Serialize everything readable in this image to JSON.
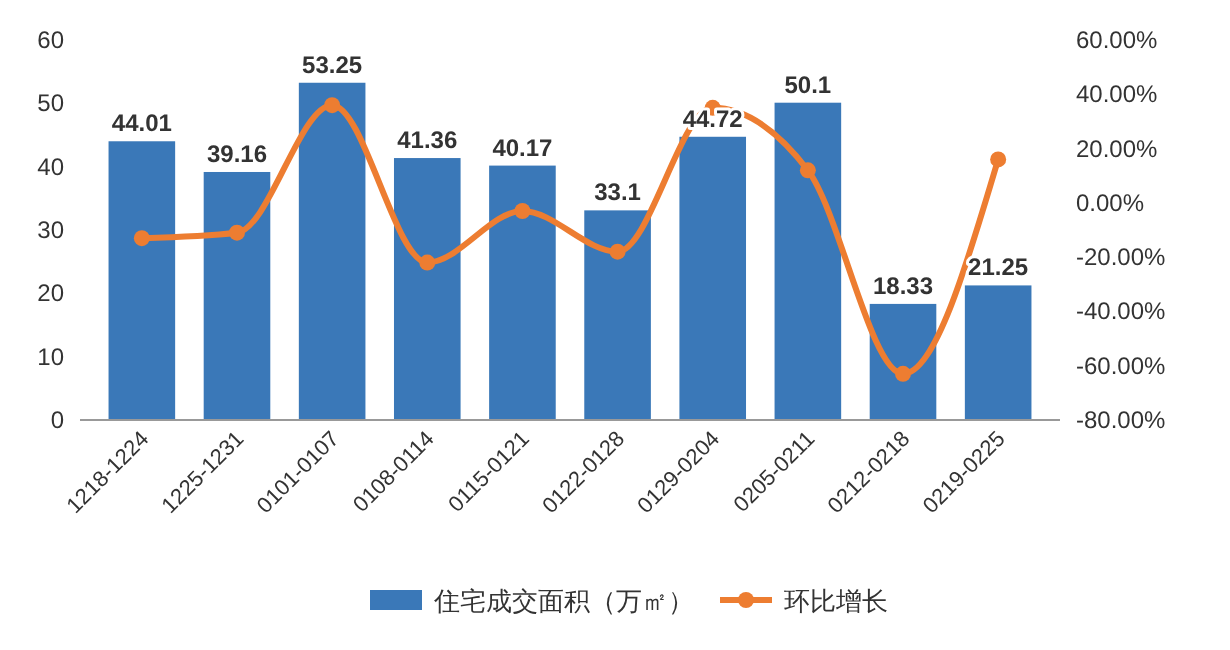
{
  "chart_data": {
    "type": "bar",
    "categories": [
      "1218-1224",
      "1225-1231",
      "0101-0107",
      "0108-0114",
      "0115-0121",
      "0122-0128",
      "0129-0204",
      "0205-0211",
      "0212-0218",
      "0219-0225"
    ],
    "series": [
      {
        "name": "住宅成交面积（万㎡）",
        "color": "#3a78b8",
        "values": [
          44.01,
          39.16,
          53.25,
          41.36,
          40.17,
          33.1,
          44.72,
          50.1,
          18.33,
          21.25
        ],
        "value_labels": [
          "44.01",
          "39.16",
          "53.25",
          "41.36",
          "40.17",
          "33.1",
          "44.72",
          "50.1",
          "18.33",
          "21.25"
        ]
      },
      {
        "name": "环比增长",
        "type": "line",
        "axis": "y2",
        "color": "#ed7d31",
        "values": [
          -13,
          -11,
          36,
          -22,
          -3,
          -18,
          35,
          12,
          -63,
          16
        ]
      }
    ],
    "ylim": [
      0,
      60
    ],
    "yticks": [
      0,
      10,
      20,
      30,
      40,
      50,
      60
    ],
    "y2lim": [
      -80,
      60
    ],
    "y2ticks": [
      {
        "value": -80,
        "label": "-80.00%"
      },
      {
        "value": -60,
        "label": "-60.00%"
      },
      {
        "value": -40,
        "label": "-40.00%"
      },
      {
        "value": -20,
        "label": "-20.00%"
      },
      {
        "value": 0,
        "label": "0.00%"
      },
      {
        "value": 20,
        "label": "20.00%"
      },
      {
        "value": 40,
        "label": "40.00%"
      },
      {
        "value": 60,
        "label": "60.00%"
      }
    ],
    "grid": false,
    "legend": "bottom",
    "marker": "circle",
    "line_style": "solid"
  }
}
